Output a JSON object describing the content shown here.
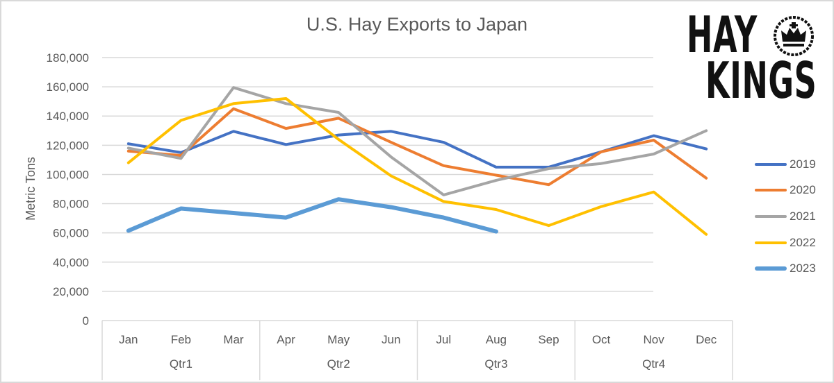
{
  "chart_data": {
    "type": "line",
    "title": "U.S. Hay Exports to Japan",
    "xlabel": "",
    "ylabel": "Metric Tons",
    "ylim": [
      0,
      180000
    ],
    "yticks": [
      0,
      20000,
      40000,
      60000,
      80000,
      100000,
      120000,
      140000,
      160000,
      180000
    ],
    "ytick_labels": [
      "0",
      "20,000",
      "40,000",
      "60,000",
      "80,000",
      "100,000",
      "120,000",
      "140,000",
      "160,000",
      "180,000"
    ],
    "grid": true,
    "legend_position": "right",
    "categories": [
      "Jan",
      "Feb",
      "Mar",
      "Apr",
      "May",
      "Jun",
      "Jul",
      "Aug",
      "Sep",
      "Oct",
      "Nov",
      "Dec"
    ],
    "category_groups": [
      {
        "label": "Qtr1",
        "months": [
          "Jan",
          "Feb",
          "Mar"
        ]
      },
      {
        "label": "Qtr2",
        "months": [
          "Apr",
          "May",
          "Jun"
        ]
      },
      {
        "label": "Qtr3",
        "months": [
          "Jul",
          "Aug",
          "Sep"
        ]
      },
      {
        "label": "Qtr4",
        "months": [
          "Oct",
          "Nov",
          "Dec"
        ]
      }
    ],
    "series": [
      {
        "name": "2019",
        "color": "#4472C4",
        "width": 4,
        "values": [
          121000,
          115000,
          129500,
          120500,
          127000,
          129500,
          122000,
          105000,
          105000,
          115500,
          126500,
          117500
        ]
      },
      {
        "name": "2020",
        "color": "#ED7D31",
        "width": 4,
        "values": [
          116000,
          113000,
          145000,
          131500,
          138500,
          122000,
          106000,
          99500,
          93000,
          115500,
          123500,
          97500
        ]
      },
      {
        "name": "2021",
        "color": "#A5A5A5",
        "width": 4,
        "values": [
          118000,
          111000,
          159500,
          148500,
          142500,
          112000,
          86000,
          96000,
          104000,
          107500,
          114000,
          130000
        ]
      },
      {
        "name": "2022",
        "color": "#FFC000",
        "width": 4,
        "values": [
          108000,
          137000,
          148500,
          152000,
          124000,
          99000,
          81500,
          76000,
          65000,
          78000,
          88000,
          59000
        ]
      },
      {
        "name": "2023",
        "color": "#5B9BD5",
        "width": 6,
        "values": [
          61500,
          76700,
          null,
          70500,
          83000,
          77600,
          70500,
          61000,
          null,
          null,
          null,
          null
        ],
        "values_interpolated_note_removed": true
      }
    ]
  },
  "legend": {
    "items": [
      {
        "label": "2019",
        "color": "#4472C4"
      },
      {
        "label": "2020",
        "color": "#ED7D31"
      },
      {
        "label": "2021",
        "color": "#A5A5A5"
      },
      {
        "label": "2022",
        "color": "#FFC000"
      },
      {
        "label": "2023",
        "color": "#5B9BD5"
      }
    ]
  },
  "logo": {
    "line1": "HAY",
    "line2": "KINGS"
  }
}
